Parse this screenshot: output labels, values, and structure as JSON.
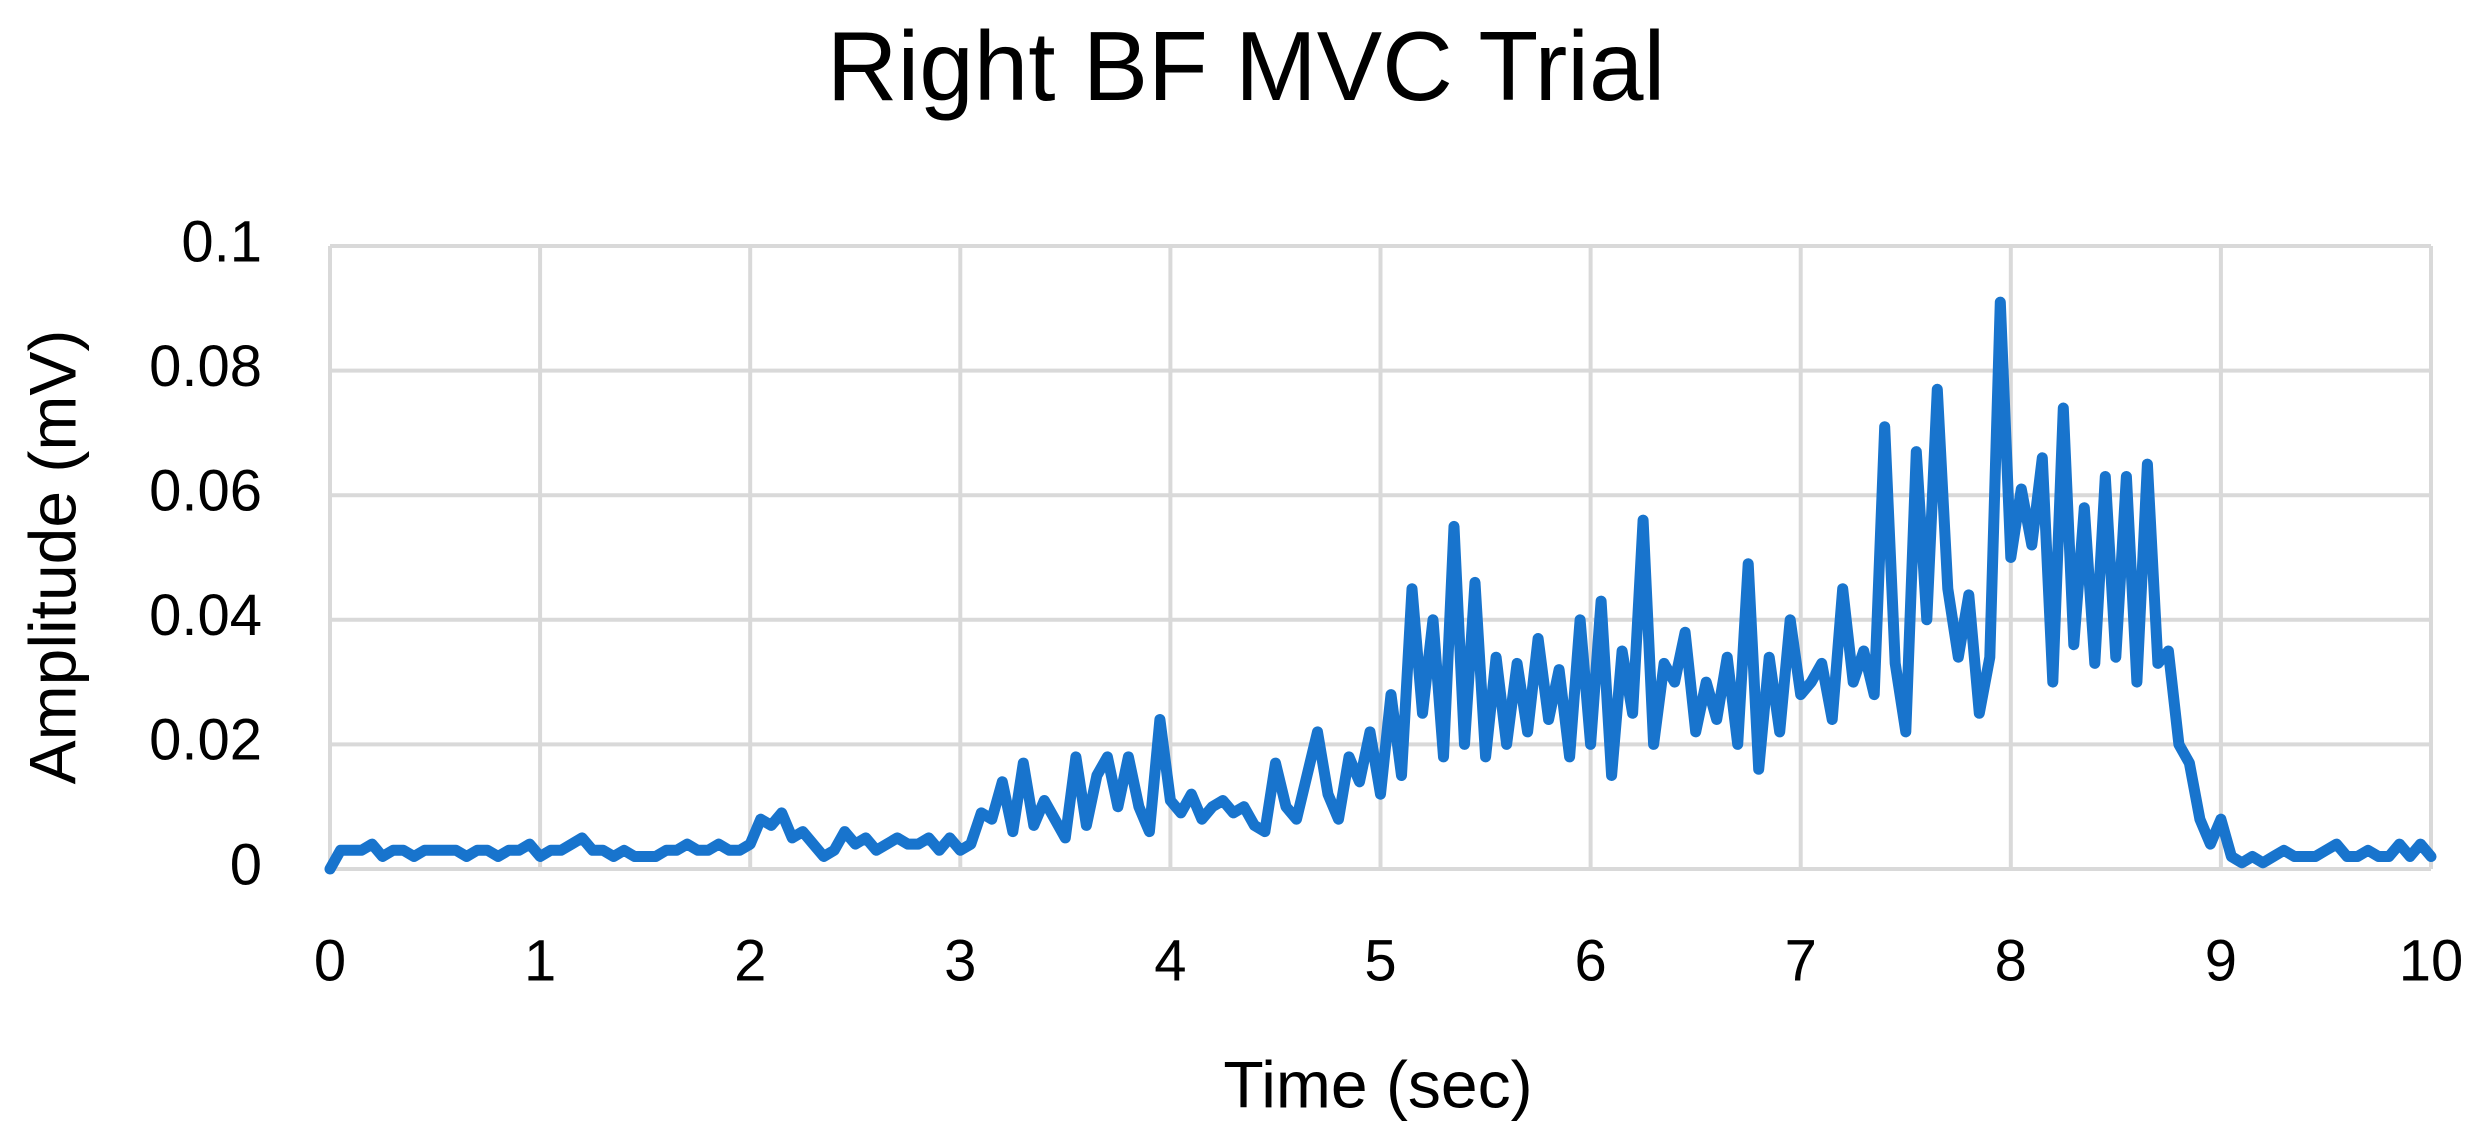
{
  "chart_data": {
    "type": "line",
    "title": "Right BF MVC Trial",
    "x_label": "Time (sec)",
    "y_label": "Amplitude (mV)",
    "xlim": [
      0,
      10
    ],
    "xticks": [
      0,
      1,
      2,
      3,
      4,
      5,
      6,
      7,
      8,
      9,
      10
    ],
    "ylim": [
      0,
      0.1
    ],
    "yticks": [
      0,
      0.02,
      0.04,
      0.06,
      0.08,
      0.1
    ],
    "grid": true,
    "x": [
      0,
      0.05,
      0.1,
      0.15,
      0.2,
      0.25,
      0.3,
      0.35,
      0.4,
      0.45,
      0.5,
      0.55,
      0.6,
      0.65,
      0.7,
      0.75,
      0.8,
      0.85,
      0.9,
      0.95,
      1,
      1.05,
      1.1,
      1.15,
      1.2,
      1.25,
      1.3,
      1.35,
      1.4,
      1.45,
      1.5,
      1.55,
      1.6,
      1.65,
      1.7,
      1.75,
      1.8,
      1.85,
      1.9,
      1.95,
      2,
      2.05,
      2.1,
      2.15,
      2.2,
      2.25,
      2.3,
      2.35,
      2.4,
      2.45,
      2.5,
      2.55,
      2.6,
      2.65,
      2.7,
      2.75,
      2.8,
      2.85,
      2.9,
      2.95,
      3,
      3.05,
      3.1,
      3.15,
      3.2,
      3.25,
      3.3,
      3.35,
      3.4,
      3.45,
      3.5,
      3.55,
      3.6,
      3.65,
      3.7,
      3.75,
      3.8,
      3.85,
      3.9,
      3.95,
      4,
      4.05,
      4.1,
      4.15,
      4.2,
      4.25,
      4.3,
      4.35,
      4.4,
      4.45,
      4.5,
      4.55,
      4.6,
      4.65,
      4.7,
      4.75,
      4.8,
      4.85,
      4.9,
      4.95,
      5,
      5.05,
      5.1,
      5.15,
      5.2,
      5.25,
      5.3,
      5.35,
      5.4,
      5.45,
      5.5,
      5.55,
      5.6,
      5.65,
      5.7,
      5.75,
      5.8,
      5.85,
      5.9,
      5.95,
      6,
      6.05,
      6.1,
      6.15,
      6.2,
      6.25,
      6.3,
      6.35,
      6.4,
      6.45,
      6.5,
      6.55,
      6.6,
      6.65,
      6.7,
      6.75,
      6.8,
      6.85,
      6.9,
      6.95,
      7,
      7.05,
      7.1,
      7.15,
      7.2,
      7.25,
      7.3,
      7.35,
      7.4,
      7.45,
      7.5,
      7.55,
      7.6,
      7.65,
      7.7,
      7.75,
      7.8,
      7.85,
      7.9,
      7.95,
      8,
      8.05,
      8.1,
      8.15,
      8.2,
      8.25,
      8.3,
      8.35,
      8.4,
      8.45,
      8.5,
      8.55,
      8.6,
      8.65,
      8.7,
      8.75,
      8.8,
      8.85,
      8.9,
      8.95,
      9,
      9.05,
      9.1,
      9.15,
      9.2,
      9.25,
      9.3,
      9.35,
      9.4,
      9.45,
      9.5,
      9.55,
      9.6,
      9.65,
      9.7,
      9.75,
      9.8,
      9.85,
      9.9,
      9.95,
      10
    ],
    "series": [
      {
        "name": "Right BF",
        "color": "#1874cd",
        "values": [
          0,
          0.003,
          0.003,
          0.003,
          0.004,
          0.002,
          0.003,
          0.003,
          0.002,
          0.003,
          0.003,
          0.003,
          0.003,
          0.002,
          0.003,
          0.003,
          0.002,
          0.003,
          0.003,
          0.004,
          0.002,
          0.003,
          0.003,
          0.004,
          0.005,
          0.003,
          0.003,
          0.002,
          0.003,
          0.002,
          0.002,
          0.002,
          0.003,
          0.003,
          0.004,
          0.003,
          0.003,
          0.004,
          0.003,
          0.003,
          0.004,
          0.008,
          0.007,
          0.009,
          0.005,
          0.006,
          0.004,
          0.002,
          0.003,
          0.006,
          0.004,
          0.005,
          0.003,
          0.004,
          0.005,
          0.004,
          0.004,
          0.005,
          0.003,
          0.005,
          0.003,
          0.004,
          0.009,
          0.008,
          0.014,
          0.006,
          0.017,
          0.007,
          0.011,
          0.008,
          0.005,
          0.018,
          0.007,
          0.015,
          0.018,
          0.01,
          0.018,
          0.01,
          0.006,
          0.024,
          0.011,
          0.009,
          0.012,
          0.008,
          0.01,
          0.011,
          0.009,
          0.01,
          0.007,
          0.006,
          0.017,
          0.01,
          0.008,
          0.015,
          0.022,
          0.012,
          0.008,
          0.018,
          0.014,
          0.022,
          0.012,
          0.028,
          0.015,
          0.045,
          0.025,
          0.04,
          0.018,
          0.055,
          0.02,
          0.046,
          0.018,
          0.034,
          0.02,
          0.033,
          0.022,
          0.037,
          0.024,
          0.032,
          0.018,
          0.04,
          0.02,
          0.043,
          0.015,
          0.035,
          0.025,
          0.056,
          0.02,
          0.033,
          0.03,
          0.038,
          0.022,
          0.03,
          0.024,
          0.034,
          0.02,
          0.049,
          0.016,
          0.034,
          0.022,
          0.04,
          0.028,
          0.03,
          0.033,
          0.024,
          0.045,
          0.03,
          0.035,
          0.028,
          0.071,
          0.033,
          0.022,
          0.067,
          0.04,
          0.077,
          0.045,
          0.034,
          0.044,
          0.025,
          0.034,
          0.091,
          0.05,
          0.061,
          0.052,
          0.066,
          0.03,
          0.074,
          0.036,
          0.058,
          0.033,
          0.063,
          0.034,
          0.063,
          0.03,
          0.065,
          0.033,
          0.035,
          0.02,
          0.017,
          0.008,
          0.004,
          0.008,
          0.002,
          0.001,
          0.002,
          0.001,
          0.002,
          0.003,
          0.002,
          0.002,
          0.002,
          0.003,
          0.004,
          0.002,
          0.002,
          0.003,
          0.002,
          0.002,
          0.004,
          0.002,
          0.004,
          0.002
        ]
      }
    ]
  }
}
